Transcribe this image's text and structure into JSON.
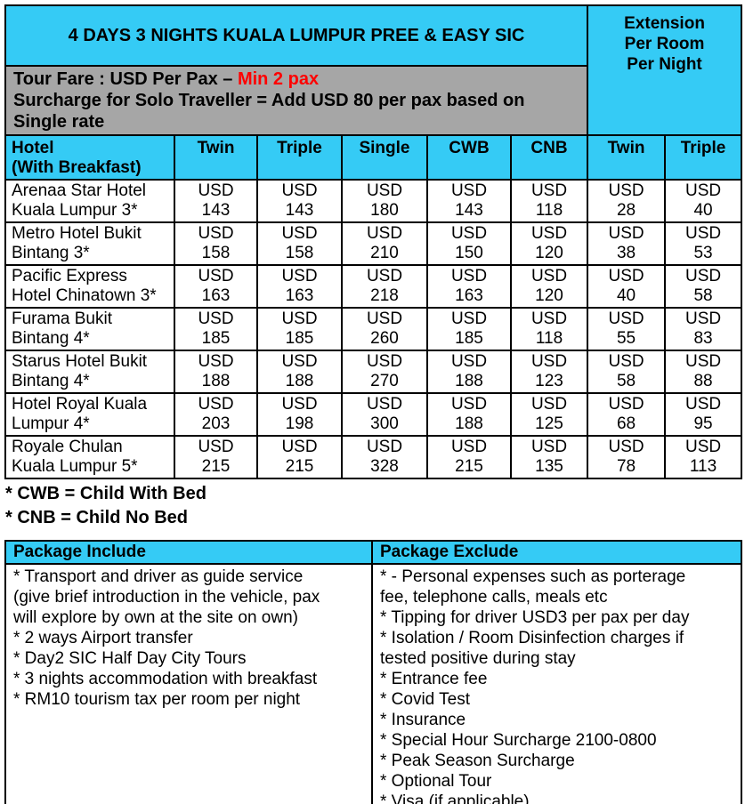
{
  "colors": {
    "cyan": "#35CBF5",
    "gray": "#A6A6A6",
    "red": "#FF0000",
    "border": "#000000"
  },
  "header": {
    "title": "4 DAYS 3 NIGHTS KUALA LUMPUR PREE & EASY SIC",
    "extension_label": "Extension\nPer Room\nPer Night",
    "fare_prefix": "Tour Fare : USD Per Pax – ",
    "fare_highlight": "Min 2 pax",
    "surcharge_line": "Surcharge for Solo Traveller = Add USD 80 per pax based on\nSingle rate"
  },
  "rate_table": {
    "currency": "USD",
    "columns": [
      "Hotel\n(With Breakfast)",
      "Twin",
      "Triple",
      "Single",
      "CWB",
      "CNB",
      "Twin",
      "Triple"
    ],
    "rows": [
      {
        "hotel": "Arenaa Star Hotel\nKuala Lumpur 3*",
        "prices": [
          143,
          143,
          180,
          143,
          118,
          28,
          40
        ]
      },
      {
        "hotel": "Metro Hotel Bukit\nBintang 3*",
        "prices": [
          158,
          158,
          210,
          150,
          120,
          38,
          53
        ]
      },
      {
        "hotel": "Pacific Express\nHotel Chinatown 3*",
        "prices": [
          163,
          163,
          218,
          163,
          120,
          40,
          58
        ]
      },
      {
        "hotel": "Furama Bukit\nBintang 4*",
        "prices": [
          185,
          185,
          260,
          185,
          118,
          55,
          83
        ]
      },
      {
        "hotel": "Starus Hotel Bukit\nBintang 4*",
        "prices": [
          188,
          188,
          270,
          188,
          123,
          58,
          88
        ]
      },
      {
        "hotel": "Hotel Royal Kuala\nLumpur 4*",
        "prices": [
          203,
          198,
          300,
          188,
          125,
          68,
          95
        ]
      },
      {
        "hotel": "Royale Chulan\nKuala Lumpur 5*",
        "prices": [
          215,
          215,
          328,
          215,
          135,
          78,
          113
        ]
      }
    ]
  },
  "notes": [
    "* CWB = Child With Bed",
    "* CNB = Child No Bed"
  ],
  "packages": {
    "include": {
      "title": "Package Include",
      "items": [
        "* Transport and driver as guide service\n(give brief introduction in the vehicle, pax\nwill explore by own at the site on own)",
        "* 2 ways Airport transfer",
        "* Day2 SIC Half Day City Tours",
        "* 3 nights accommodation with breakfast",
        "* RM10 tourism tax per room per night"
      ]
    },
    "exclude": {
      "title": "Package Exclude",
      "items": [
        "* - Personal expenses such as porterage\nfee, telephone calls, meals etc",
        "* Tipping for driver USD3 per pax per day",
        "* Isolation / Room Disinfection charges if\ntested positive during stay",
        "* Entrance fee",
        "* Covid Test",
        "* Insurance",
        "* Special Hour Surcharge 2100-0800",
        "* Peak Season Surcharge",
        "* Optional Tour",
        "* Visa (if applicable)"
      ]
    }
  }
}
